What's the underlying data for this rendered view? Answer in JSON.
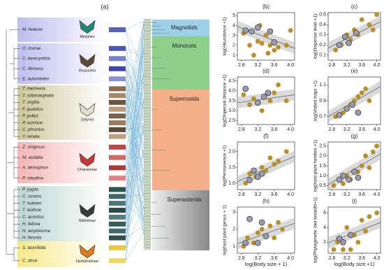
{
  "panel_label": "(a)",
  "tribes": [
    {
      "name": "Morphini",
      "species": [
        "M. helenor"
      ]
    },
    {
      "name": "Brassolini",
      "species": [
        "O. invirae",
        "C. berecynthia",
        "C. illioneus",
        "E. automedon"
      ]
    },
    {
      "name": "Satyrini",
      "species": [
        "T. mermeria",
        "T. rufomarginata",
        "T. virgilia",
        "F. quantius",
        "P. pollys",
        "P. ocirrhoe",
        "C. phronius",
        "Y. renata"
      ]
    },
    {
      "name": "Charaxinae",
      "species": [
        "Z. strigosus",
        "M. acidalia",
        "A. demophon",
        "P. claudina"
      ]
    },
    {
      "name": "Biblidinae",
      "species": [
        "P. pygas",
        "C. sorana",
        "T. hubneri",
        "T. laothoe",
        "C. acontius",
        "H. februa",
        "H. amphinome",
        "H. feronia"
      ]
    },
    {
      "name": "Nymphalinae",
      "species": [
        "S. blomfildia",
        "C. dirce"
      ]
    }
  ],
  "plant_clades": [
    "Magnoliids",
    "Monocots",
    "Superrosids",
    "Superasterids"
  ],
  "chart_data": [
    {
      "type": "scatter",
      "panel": "(b)",
      "ylabel": "log(Abundance +1)",
      "xlim": [
        2.7,
        4.1
      ],
      "ylim": [
        0.5,
        5.3
      ],
      "xticks": [
        2.8,
        3.2,
        3.6,
        {
          "value": 4,
          "label": "4.0"
        }
      ],
      "yticks": [
        1,
        2,
        3,
        4,
        5
      ],
      "trend": [
        3.9,
        1.7
      ],
      "series": [
        {
          "color": "#b8902a",
          "x": [
            2.85,
            3.0,
            3.1,
            3.2,
            3.3,
            3.4,
            3.5,
            3.6,
            3.7,
            3.9,
            4.0,
            3.25,
            3.45
          ],
          "values": [
            3.2,
            2.0,
            1.0,
            2.4,
            2.2,
            3.0,
            2.0,
            1.5,
            1.8,
            2.0,
            3.5,
            4.0,
            1.2
          ]
        },
        {
          "color": "#9a9ab0",
          "x": [
            2.9,
            3.05,
            3.2,
            3.5,
            3.6
          ],
          "values": [
            3.5,
            3.4,
            3.8,
            3.4,
            2.3
          ]
        }
      ]
    },
    {
      "type": "scatter",
      "panel": "(c)",
      "ylabel": "log(Dispersal level +1)",
      "xlim": [
        2.7,
        4.1
      ],
      "ylim": [
        0.05,
        0.52
      ],
      "xticks": [
        2.8,
        3.2,
        3.6,
        {
          "value": 4,
          "label": "4.0"
        }
      ],
      "yticks": [
        0.1,
        0.2,
        0.3,
        0.4,
        0.5
      ],
      "trend": [
        0.17,
        0.43
      ],
      "series": [
        {
          "color": "#b8902a",
          "x": [
            2.9,
            3.05,
            3.2,
            3.3,
            3.4,
            3.5,
            3.6,
            3.8,
            3.9,
            4.0
          ],
          "values": [
            0.15,
            0.2,
            0.3,
            0.25,
            0.35,
            0.3,
            0.45,
            0.4,
            0.35,
            0.5
          ]
        },
        {
          "color": "#9a9ab0",
          "x": [
            3.0,
            3.15,
            3.25,
            3.45
          ],
          "values": [
            0.2,
            0.28,
            0.22,
            0.32
          ]
        }
      ]
    },
    {
      "type": "scatter",
      "panel": "(d)",
      "ylabel": "log(Dispersal distance +1)",
      "xlim": [
        2.7,
        4.1
      ],
      "ylim": [
        2.3,
        4.7
      ],
      "xticks": [
        2.8,
        3.2,
        3.6,
        {
          "value": 4,
          "label": "4.0"
        }
      ],
      "yticks": [
        2.5,
        {
          "value": 3,
          "label": "3.0"
        },
        3.5,
        {
          "value": 4,
          "label": "4.0"
        },
        4.5
      ],
      "trend": [
        3.4,
        3.8
      ],
      "series": [
        {
          "color": "#b8902a",
          "x": [
            2.85,
            3.0,
            3.1,
            3.3,
            3.5,
            3.6,
            3.7,
            3.9
          ],
          "values": [
            3.8,
            3.3,
            3.6,
            3.0,
            3.5,
            3.9,
            4.3,
            3.5
          ]
        },
        {
          "color": "#9a9ab0",
          "x": [
            2.9,
            3.2,
            3.35,
            3.45
          ],
          "values": [
            4.1,
            3.4,
            3.7,
            3.9
          ]
        }
      ]
    },
    {
      "type": "scatter",
      "panel": "(e)",
      "ylabel": "log(Visited traps +1)",
      "xlim": [
        2.7,
        4.1
      ],
      "ylim": [
        0.6,
        1.2
      ],
      "xticks": [
        2.8,
        3.2,
        3.6,
        {
          "value": 4,
          "label": "4.0"
        }
      ],
      "yticks": [
        0.7,
        0.9,
        1.1
      ],
      "trend": [
        0.7,
        1.08
      ],
      "series": [
        {
          "color": "#b8902a",
          "x": [
            2.9,
            3.1,
            3.2,
            3.3,
            3.4,
            3.5,
            3.6,
            3.7,
            3.8
          ],
          "values": [
            0.7,
            0.75,
            0.8,
            0.85,
            0.9,
            0.95,
            1.0,
            1.05,
            0.9
          ]
        },
        {
          "color": "#9a9ab0",
          "x": [
            3.0,
            3.2,
            3.35,
            3.5
          ],
          "values": [
            0.72,
            0.8,
            0.85,
            0.75
          ]
        }
      ]
    },
    {
      "type": "scatter",
      "panel": "(f)",
      "ylabel": "log(Permanence +1)",
      "xlim": [
        2.7,
        4.1
      ],
      "ylim": [
        0.8,
        2.3
      ],
      "xticks": [
        2.8,
        3.2,
        3.6,
        {
          "value": 4,
          "label": "4.0"
        }
      ],
      "yticks": [
        {
          "value": 1,
          "label": "1.0"
        },
        1.5,
        {
          "value": 2,
          "label": "2.0"
        }
      ],
      "trend": [
        1.05,
        1.85
      ],
      "series": [
        {
          "color": "#b8902a",
          "x": [
            2.9,
            3.0,
            3.15,
            3.3,
            3.4,
            3.5,
            3.6,
            3.7,
            3.9
          ],
          "values": [
            1.0,
            1.3,
            1.2,
            1.5,
            1.4,
            1.8,
            1.6,
            1.7,
            2.0
          ]
        },
        {
          "color": "#9a9ab0",
          "x": [
            3.0,
            3.1,
            3.2,
            3.3
          ],
          "values": [
            1.1,
            1.4,
            1.2,
            1.3
          ]
        }
      ]
    },
    {
      "type": "scatter",
      "panel": "(g)",
      "ylabel": "log(host plant families +1)",
      "xlim": [
        2.7,
        4.1
      ],
      "ylim": [
        0.3,
        2.7
      ],
      "xticks": [
        2.8,
        3.2,
        3.6,
        {
          "value": 4,
          "label": "4.0"
        }
      ],
      "yticks": [
        0.5,
        {
          "value": 1,
          "label": "1.0"
        },
        1.5,
        {
          "value": 2,
          "label": "2.0"
        },
        2.5
      ],
      "trend": [
        0.55,
        2.1
      ],
      "series": [
        {
          "color": "#b8902a",
          "x": [
            2.85,
            3.0,
            3.1,
            3.2,
            3.3,
            3.5,
            3.6,
            3.7,
            3.8,
            3.9,
            4.0
          ],
          "values": [
            0.5,
            0.8,
            0.6,
            1.0,
            0.8,
            1.2,
            1.5,
            2.0,
            1.4,
            2.2,
            2.5
          ]
        },
        {
          "color": "#9a9ab0",
          "x": [
            3.0,
            3.1,
            3.25,
            3.4,
            3.5
          ],
          "values": [
            0.8,
            1.0,
            0.8,
            1.2,
            0.9
          ]
        }
      ]
    },
    {
      "type": "scatter",
      "panel": "(h)",
      "ylabel": "log(host plant genus + 1)",
      "xlabel": "log(Body size + 1)",
      "xlim": [
        2.7,
        4.1
      ],
      "ylim": [
        0.6,
        3.3
      ],
      "xticks": [
        2.8,
        3.2,
        3.6,
        {
          "value": 4,
          "label": "4.0"
        }
      ],
      "yticks": [
        1,
        2,
        3
      ],
      "trend": [
        1.15,
        2.35
      ],
      "series": [
        {
          "color": "#b8902a",
          "x": [
            2.85,
            2.95,
            3.1,
            3.2,
            3.3,
            3.5,
            3.6,
            3.7,
            3.8
          ],
          "values": [
            1.0,
            1.5,
            1.2,
            1.8,
            2.0,
            2.2,
            1.5,
            2.4,
            2.0
          ]
        },
        {
          "color": "#9a9ab0",
          "x": [
            2.9,
            3.0,
            3.2,
            3.3,
            3.4
          ],
          "values": [
            1.2,
            2.6,
            1.2,
            2.4,
            1.6
          ]
        }
      ]
    },
    {
      "type": "scatter",
      "panel": "(i)",
      "ylabel": "log(Phylogenetic diet breadth+1)",
      "xlabel": "log(Body size +1)",
      "xlim": [
        2.7,
        4.1
      ],
      "ylim": [
        0.5,
        6.8
      ],
      "xticks": [
        2.8,
        3.2,
        3.6,
        {
          "value": 4,
          "label": "4.0"
        }
      ],
      "yticks": [
        2,
        4,
        6
      ],
      "trend": [
        1.9,
        4.7
      ],
      "series": [
        {
          "color": "#b8902a",
          "x": [
            2.85,
            2.95,
            3.1,
            3.2,
            3.3,
            3.4,
            3.5,
            3.6,
            3.7,
            3.8,
            4.0
          ],
          "values": [
            1.0,
            2.0,
            1.0,
            4.0,
            1.0,
            3.0,
            2.0,
            5.0,
            3.5,
            5.5,
            6.0
          ]
        },
        {
          "color": "#9a9ab0",
          "x": [
            3.0,
            3.1,
            3.3
          ],
          "values": [
            2.5,
            2.0,
            3.0
          ]
        }
      ]
    }
  ]
}
